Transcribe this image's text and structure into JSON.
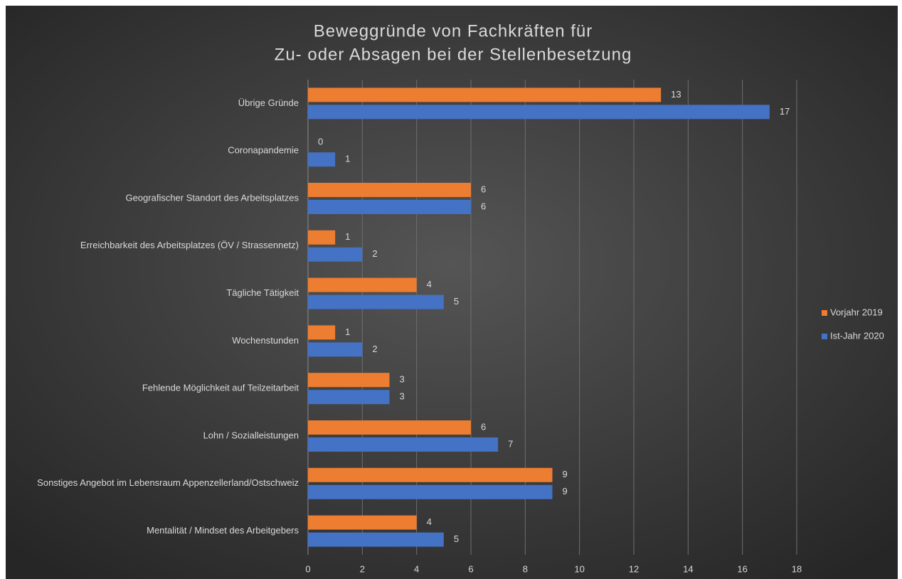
{
  "chart_data": {
    "type": "hbar",
    "title": [
      "Beweggründe von Fachkräften für",
      "Zu- oder Absagen bei der Stellenbesetzung"
    ],
    "categories": [
      "Übrige Gründe",
      "Coronapandemie",
      "Geografischer Standort des Arbeitsplatzes",
      "Erreichbarkeit des Arbeitsplatzes (ÖV / Strassennetz)",
      "Tägliche Tätigkeit",
      "Wochenstunden",
      "Fehlende Möglichkeit auf Teilzeitarbeit",
      "Lohn / Sozialleistungen",
      "Sonstiges Angebot im Lebensraum Appenzellerland/Ostschweiz",
      "Mentalität / Mindset des Arbeitgebers"
    ],
    "series": [
      {
        "name": "Vorjahr 2019",
        "color": "#ed7d31",
        "values": [
          13,
          0,
          6,
          1,
          4,
          1,
          3,
          6,
          9,
          4
        ]
      },
      {
        "name": "Ist-Jahr 2020",
        "color": "#4472c4",
        "values": [
          17,
          1,
          6,
          2,
          5,
          2,
          3,
          7,
          9,
          5
        ]
      }
    ],
    "xlim": [
      0,
      18
    ],
    "xticks": [
      0,
      2,
      4,
      6,
      8,
      10,
      12,
      14,
      16,
      18
    ],
    "grid": true,
    "legend": "right"
  }
}
